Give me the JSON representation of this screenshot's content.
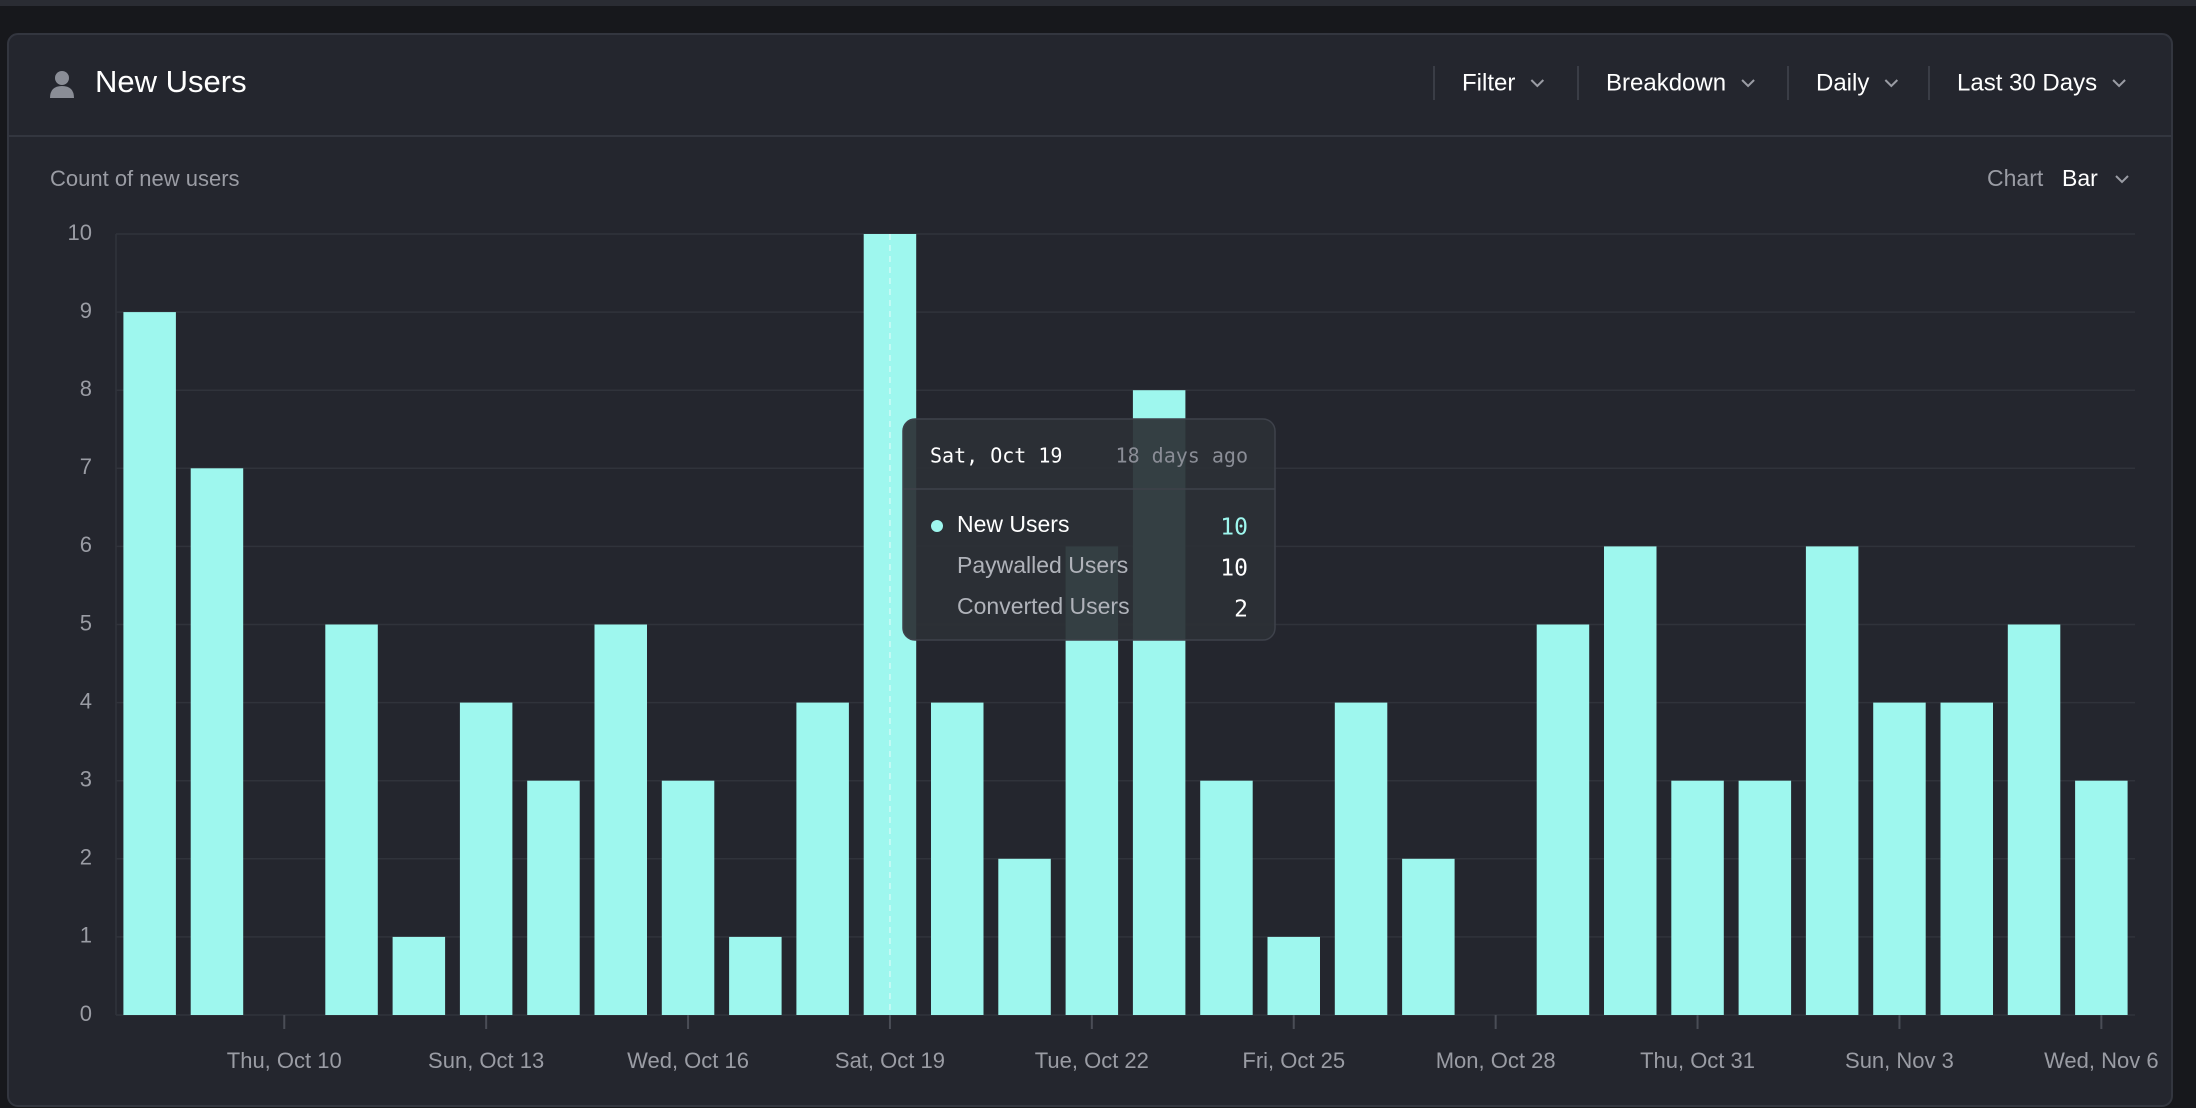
{
  "header": {
    "title": "New Users",
    "controls": [
      "Filter",
      "Breakdown",
      "Daily",
      "Last 30 Days"
    ]
  },
  "chart_picker": {
    "label": "Chart",
    "value": "Bar"
  },
  "chart_data": {
    "type": "bar",
    "subtitle": "Count of new users",
    "color": "#9ef7ee",
    "categories": [
      null,
      null,
      "Thu, Oct 10",
      null,
      null,
      "Sun, Oct 13",
      null,
      null,
      "Wed, Oct 16",
      null,
      null,
      "Sat, Oct 19",
      null,
      null,
      "Tue, Oct 22",
      null,
      null,
      "Fri, Oct 25",
      null,
      null,
      "Mon, Oct 28",
      null,
      null,
      "Thu, Oct 31",
      null,
      null,
      "Sun, Nov 3",
      null,
      null,
      "Wed, Nov 6"
    ],
    "values": [
      9,
      7,
      0,
      5,
      1,
      4,
      3,
      5,
      3,
      1,
      4,
      10,
      4,
      2,
      6,
      8,
      3,
      1,
      4,
      2,
      0,
      5,
      6,
      3,
      3,
      6,
      4,
      4,
      5,
      3
    ],
    "ylim": [
      0,
      10
    ],
    "yticks": [
      0,
      1,
      2,
      3,
      4,
      5,
      6,
      7,
      8,
      9,
      10
    ],
    "grid": true
  },
  "tooltip": {
    "date": "Sat, Oct 19",
    "ago": "18 days ago",
    "rows": [
      {
        "name": "New Users",
        "value": 10
      },
      {
        "name": "Paywalled Users",
        "value": 10
      },
      {
        "name": "Converted Users",
        "value": 2
      }
    ]
  }
}
